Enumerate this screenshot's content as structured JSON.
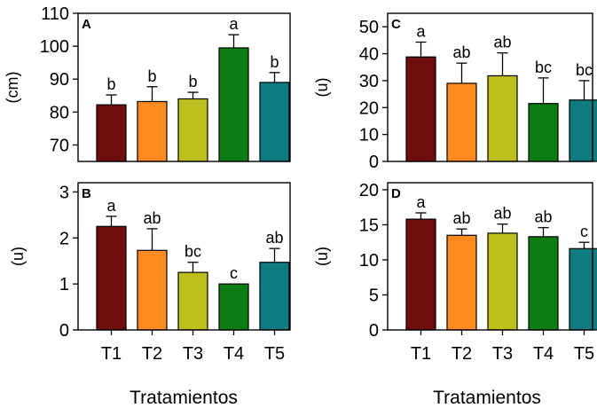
{
  "colors": [
    "#6e0d0d",
    "#ff8a1f",
    "#bcbf1e",
    "#0b7d14",
    "#0d7b7f"
  ],
  "x_title": "Tratamientos",
  "chart_data": [
    {
      "panel": "A",
      "type": "bar",
      "categories": [
        "T1",
        "T2",
        "T3",
        "T4",
        "T5"
      ],
      "values": [
        82.2,
        83.2,
        84.0,
        99.5,
        89.0
      ],
      "errors": [
        3.0,
        4.5,
        2.0,
        4.0,
        3.0
      ],
      "letters": [
        "b",
        "b",
        "b",
        "a",
        "b"
      ],
      "ylabel": "(cm)",
      "ylim": [
        65,
        110
      ],
      "yticks": [
        70,
        80,
        90,
        100,
        110
      ],
      "show_xticks": false
    },
    {
      "panel": "B",
      "type": "bar",
      "categories": [
        "T1",
        "T2",
        "T3",
        "T4",
        "T5"
      ],
      "values": [
        2.25,
        1.73,
        1.25,
        1.0,
        1.47
      ],
      "errors": [
        0.22,
        0.47,
        0.22,
        0.0,
        0.3
      ],
      "letters": [
        "a",
        "ab",
        "bc",
        "c",
        "ab"
      ],
      "ylabel": "(u)",
      "ylim": [
        0,
        3.2
      ],
      "yticks": [
        0,
        1,
        2,
        3
      ],
      "show_xticks": true
    },
    {
      "panel": "C",
      "type": "bar",
      "categories": [
        "T1",
        "T2",
        "T3",
        "T4",
        "T5"
      ],
      "values": [
        38.8,
        29.0,
        31.8,
        21.5,
        22.8
      ],
      "errors": [
        5.5,
        7.5,
        8.5,
        9.5,
        7.2
      ],
      "letters": [
        "a",
        "ab",
        "ab",
        "bc",
        "bc"
      ],
      "ylabel": "(u)",
      "ylim": [
        0,
        55
      ],
      "yticks": [
        0,
        10,
        20,
        30,
        40,
        50
      ],
      "show_xticks": false
    },
    {
      "panel": "D",
      "type": "bar",
      "categories": [
        "T1",
        "T2",
        "T3",
        "T4",
        "T5"
      ],
      "values": [
        15.8,
        13.5,
        13.8,
        13.3,
        11.6
      ],
      "errors": [
        0.9,
        0.9,
        1.3,
        1.3,
        0.9
      ],
      "letters": [
        "a",
        "ab",
        "ab",
        "ab",
        "c"
      ],
      "ylabel": "(u)",
      "ylim": [
        0,
        21
      ],
      "yticks": [
        0,
        5,
        10,
        15,
        20
      ],
      "show_xticks": true
    }
  ]
}
